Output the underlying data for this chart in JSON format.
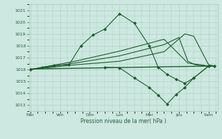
{
  "background_color": "#cce8e0",
  "grid_color": "#aaccbb",
  "line_color": "#1a5c2a",
  "xlabel": "Pression niveau de la mer( hPa )",
  "ylim": [
    1012.5,
    1021.5
  ],
  "yticks": [
    1013,
    1014,
    1015,
    1016,
    1017,
    1018,
    1019,
    1020,
    1021
  ],
  "days": [
    "Mar",
    "Ven",
    "Dim",
    "Lun",
    "Mer",
    "Jeu",
    "Sam"
  ],
  "day_positions": [
    0,
    1,
    2,
    3,
    4,
    5,
    6
  ],
  "xlim": [
    -0.05,
    6.3
  ],
  "series": [
    {
      "x": [
        0,
        0.4,
        0.8,
        1.3,
        1.7,
        2.1,
        2.5,
        3.0,
        3.5,
        4.0,
        4.3,
        4.6,
        4.9,
        5.2,
        5.5,
        6.0,
        6.2
      ],
      "y": [
        1016.0,
        1016.2,
        1016.35,
        1016.4,
        1018.0,
        1018.9,
        1019.4,
        1020.7,
        1019.9,
        1018.0,
        1016.2,
        1015.6,
        1015.2,
        1014.85,
        1015.3,
        1016.3,
        1016.3
      ],
      "marker": "D",
      "markersize": 2.0,
      "linewidth": 0.8,
      "markevery": 1
    },
    {
      "x": [
        2.5,
        3.0,
        3.5,
        4.0,
        4.3,
        4.6,
        4.9,
        5.2,
        5.5,
        6.0,
        6.2
      ],
      "y": [
        1016.2,
        1016.15,
        1015.3,
        1014.5,
        1013.85,
        1013.1,
        1013.9,
        1014.5,
        1015.3,
        1016.3,
        1016.3
      ],
      "marker": "D",
      "markersize": 2.0,
      "linewidth": 0.8,
      "markevery": 1
    },
    {
      "x": [
        0,
        6.2
      ],
      "y": [
        1016.05,
        1016.3
      ],
      "marker": null,
      "markersize": 0,
      "linewidth": 1.0
    },
    {
      "x": [
        0,
        1.5,
        3.0,
        4.5,
        5.2,
        5.5,
        6.0,
        6.2
      ],
      "y": [
        1016.0,
        1016.4,
        1016.7,
        1017.5,
        1019.0,
        1018.8,
        1016.4,
        1016.3
      ],
      "marker": null,
      "markersize": 0,
      "linewidth": 0.8
    },
    {
      "x": [
        0,
        1.5,
        3.0,
        4.5,
        5.0,
        5.3,
        5.55,
        6.0,
        6.2
      ],
      "y": [
        1016.0,
        1016.55,
        1017.15,
        1018.1,
        1018.7,
        1016.7,
        1016.4,
        1016.3,
        1016.3
      ],
      "marker": null,
      "markersize": 0,
      "linewidth": 0.8
    },
    {
      "x": [
        0,
        1.5,
        3.0,
        4.5,
        5.3,
        6.0,
        6.2
      ],
      "y": [
        1016.0,
        1016.7,
        1017.55,
        1018.55,
        1016.55,
        1016.3,
        1016.3
      ],
      "marker": null,
      "markersize": 0,
      "linewidth": 0.8
    }
  ]
}
